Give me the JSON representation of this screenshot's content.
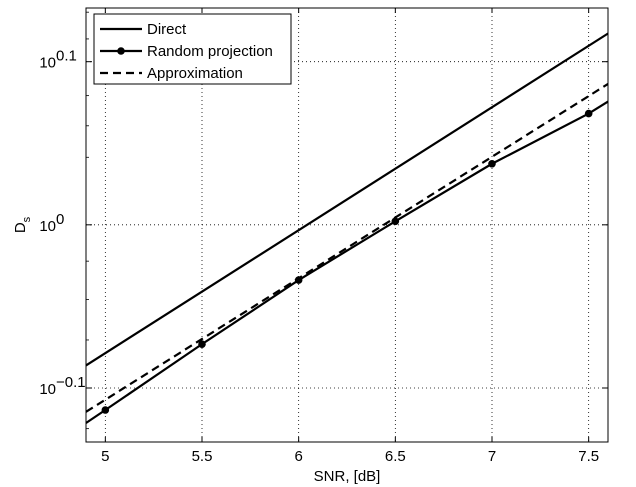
{
  "chart_data": {
    "type": "line",
    "xlabel": "SNR, [dB]",
    "ylabel": "D",
    "ylabel_subscript": "s",
    "yscale": "log10",
    "xlim": [
      4.9,
      7.6
    ],
    "ylim": [
      0.736,
      1.358
    ],
    "grid": true,
    "legend_position": "top-left",
    "x_ticks": [
      {
        "value": 5,
        "label": "5"
      },
      {
        "value": 5.5,
        "label": "5.5"
      },
      {
        "value": 6,
        "label": "6"
      },
      {
        "value": 6.5,
        "label": "6.5"
      },
      {
        "value": 7,
        "label": "7"
      },
      {
        "value": 7.5,
        "label": "7.5"
      }
    ],
    "y_ticks": [
      {
        "value": 0.7943,
        "base": "10",
        "exponent": "−0.1"
      },
      {
        "value": 1.0,
        "base": "10",
        "exponent": "0"
      },
      {
        "value": 1.2589,
        "base": "10",
        "exponent": "0.1"
      }
    ],
    "series": [
      {
        "name": "Direct",
        "style": "solid",
        "marker": "none",
        "x": [
          4.9,
          7.6
        ],
        "y": [
          0.82,
          1.31
        ]
      },
      {
        "name": "Random projection",
        "style": "solid",
        "marker": "dot",
        "x": [
          4.9,
          5.0,
          5.5,
          6.0,
          6.5,
          7.0,
          7.5,
          7.6
        ],
        "y": [
          0.756,
          0.77,
          0.845,
          0.925,
          1.005,
          1.09,
          1.17,
          1.19
        ]
      },
      {
        "name": "Approximation",
        "style": "dashed",
        "marker": "none",
        "x": [
          4.9,
          7.6
        ],
        "y": [
          0.768,
          1.22
        ]
      }
    ]
  }
}
